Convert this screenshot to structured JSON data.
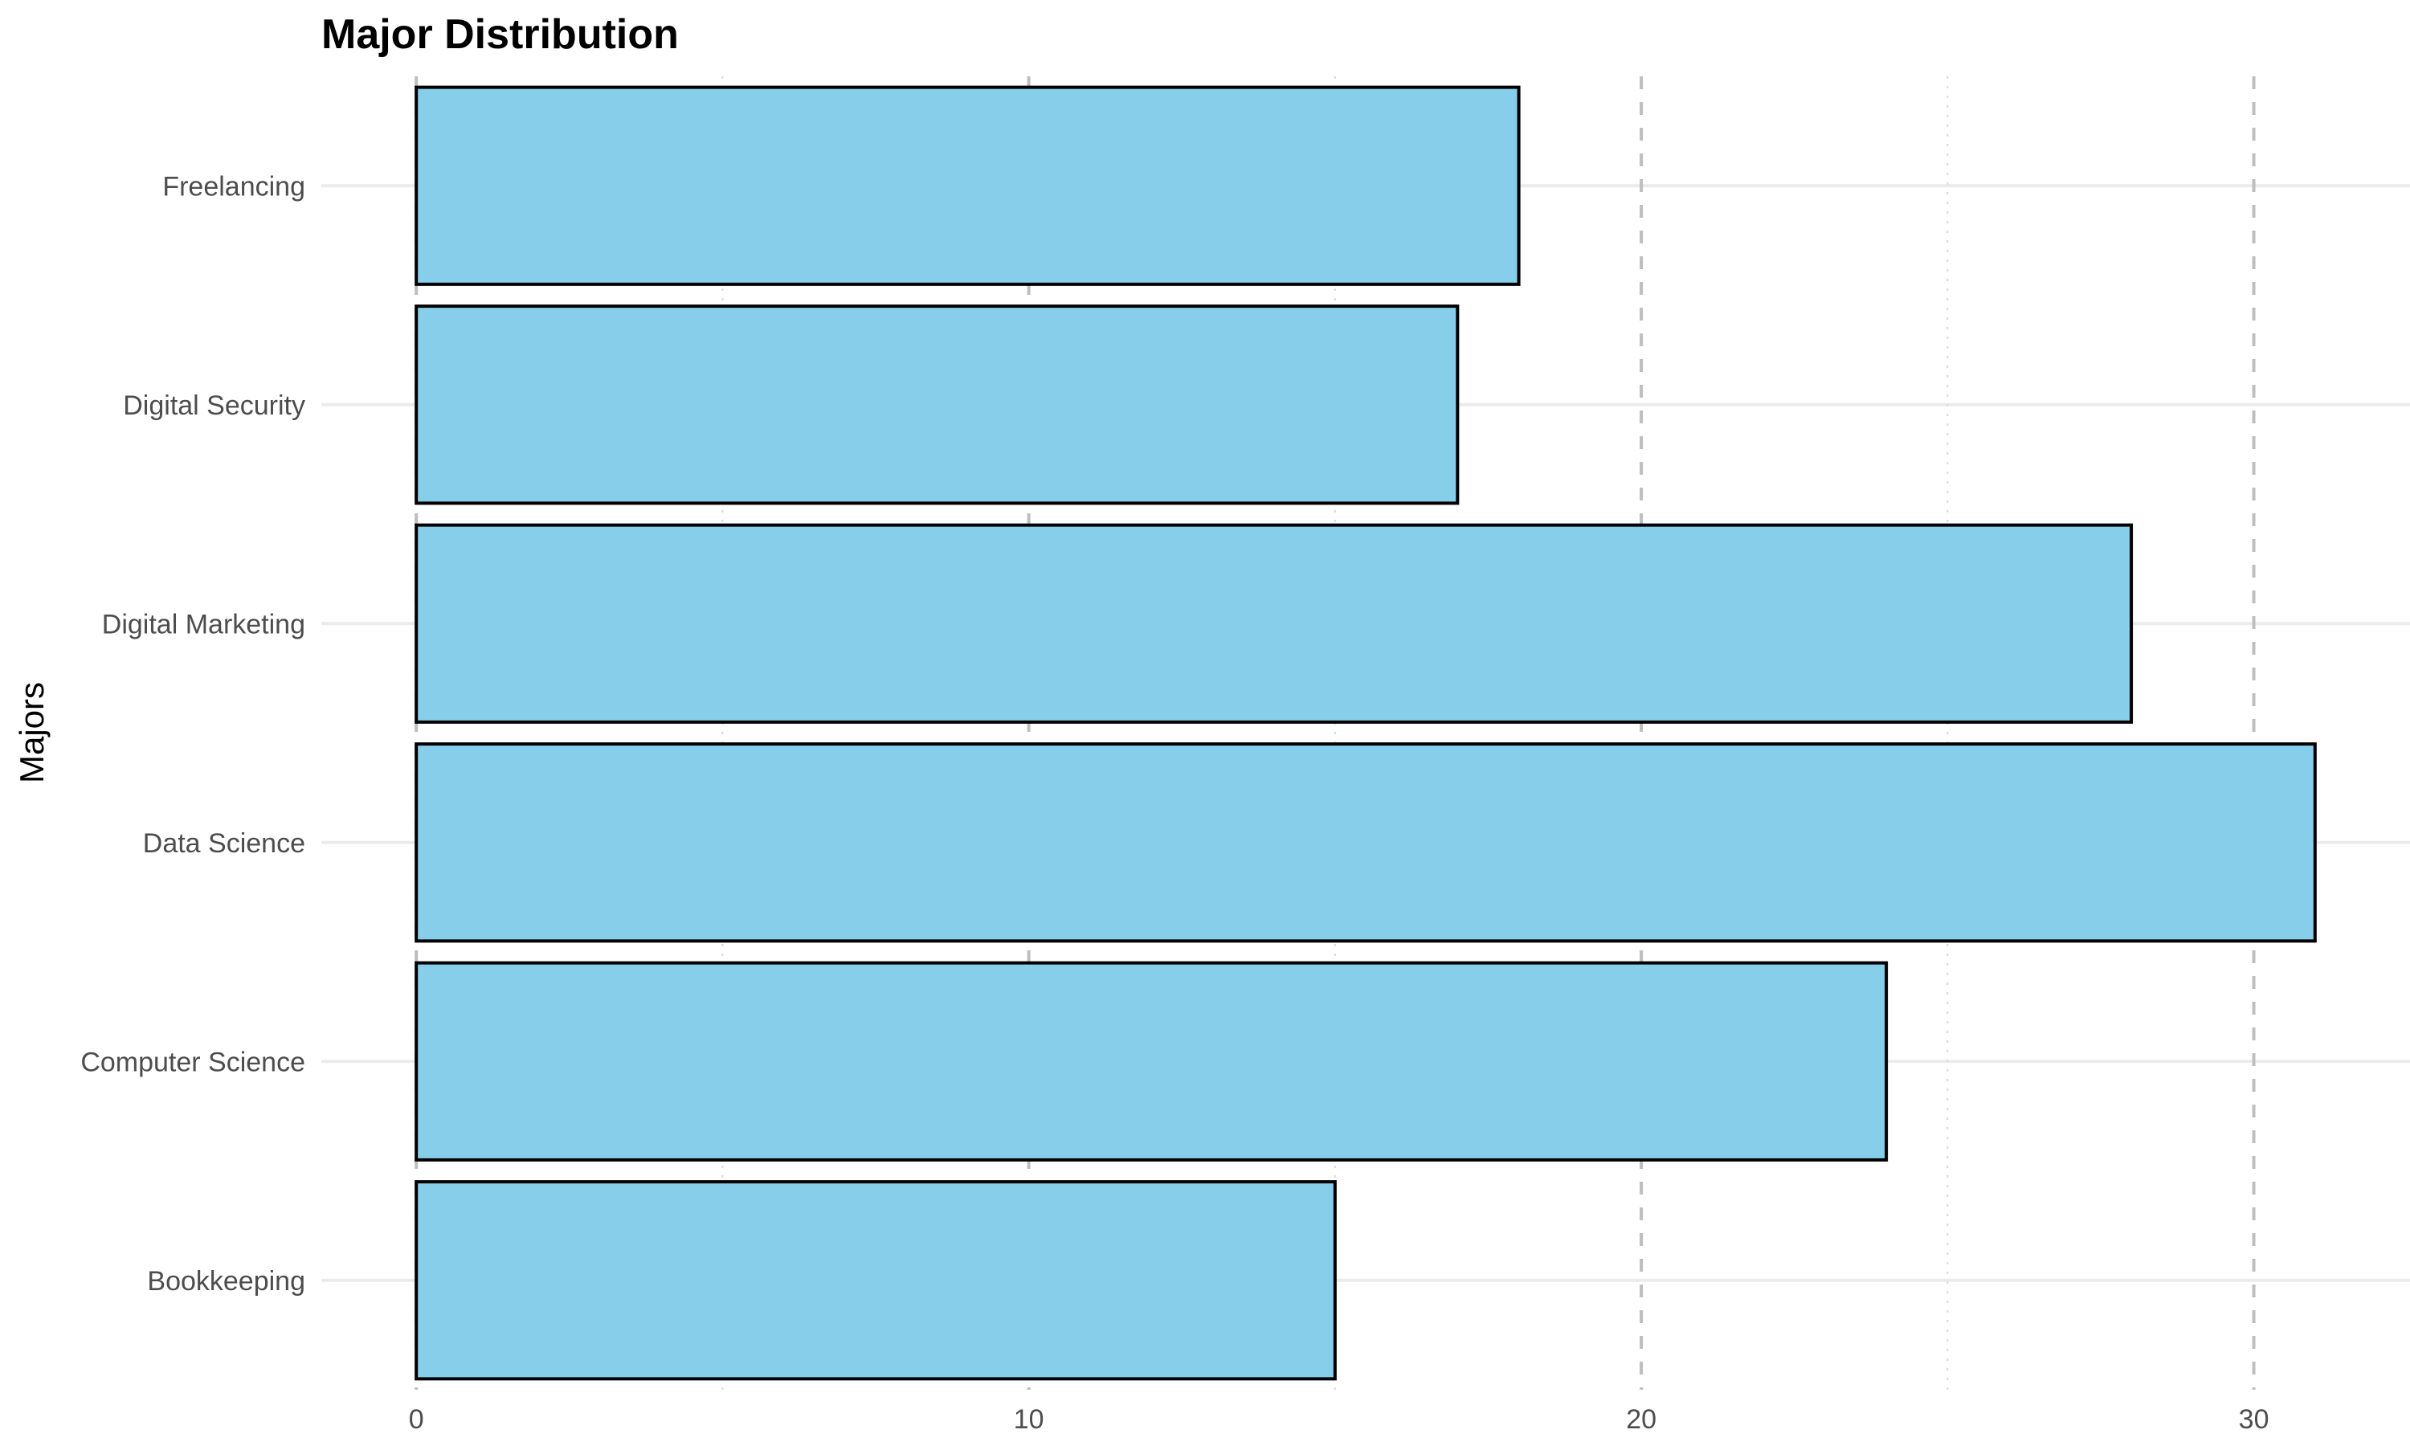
{
  "chart_data": {
    "type": "bar",
    "orientation": "horizontal",
    "title": "Major Distribution",
    "xlabel": "",
    "ylabel": "Majors",
    "categories": [
      "Bookkeeping",
      "Computer Science",
      "Data Science",
      "Digital Marketing",
      "Digital Security",
      "Freelancing"
    ],
    "values": [
      15,
      24,
      31,
      28,
      17,
      18
    ],
    "xlim": [
      -1.55,
      32.55
    ],
    "x_ticks": [
      "0",
      "10",
      "20",
      "30"
    ],
    "x_tick_values": [
      0,
      10,
      20,
      30
    ],
    "x_minor_tick_values": [
      5,
      15,
      25
    ],
    "grid": true,
    "legend": "none",
    "bar_color": "#87CEEB",
    "bar_edge_color": "#000000",
    "major_grid_color": "#BEBEBE",
    "minor_grid_color": "#D9D9D9"
  }
}
